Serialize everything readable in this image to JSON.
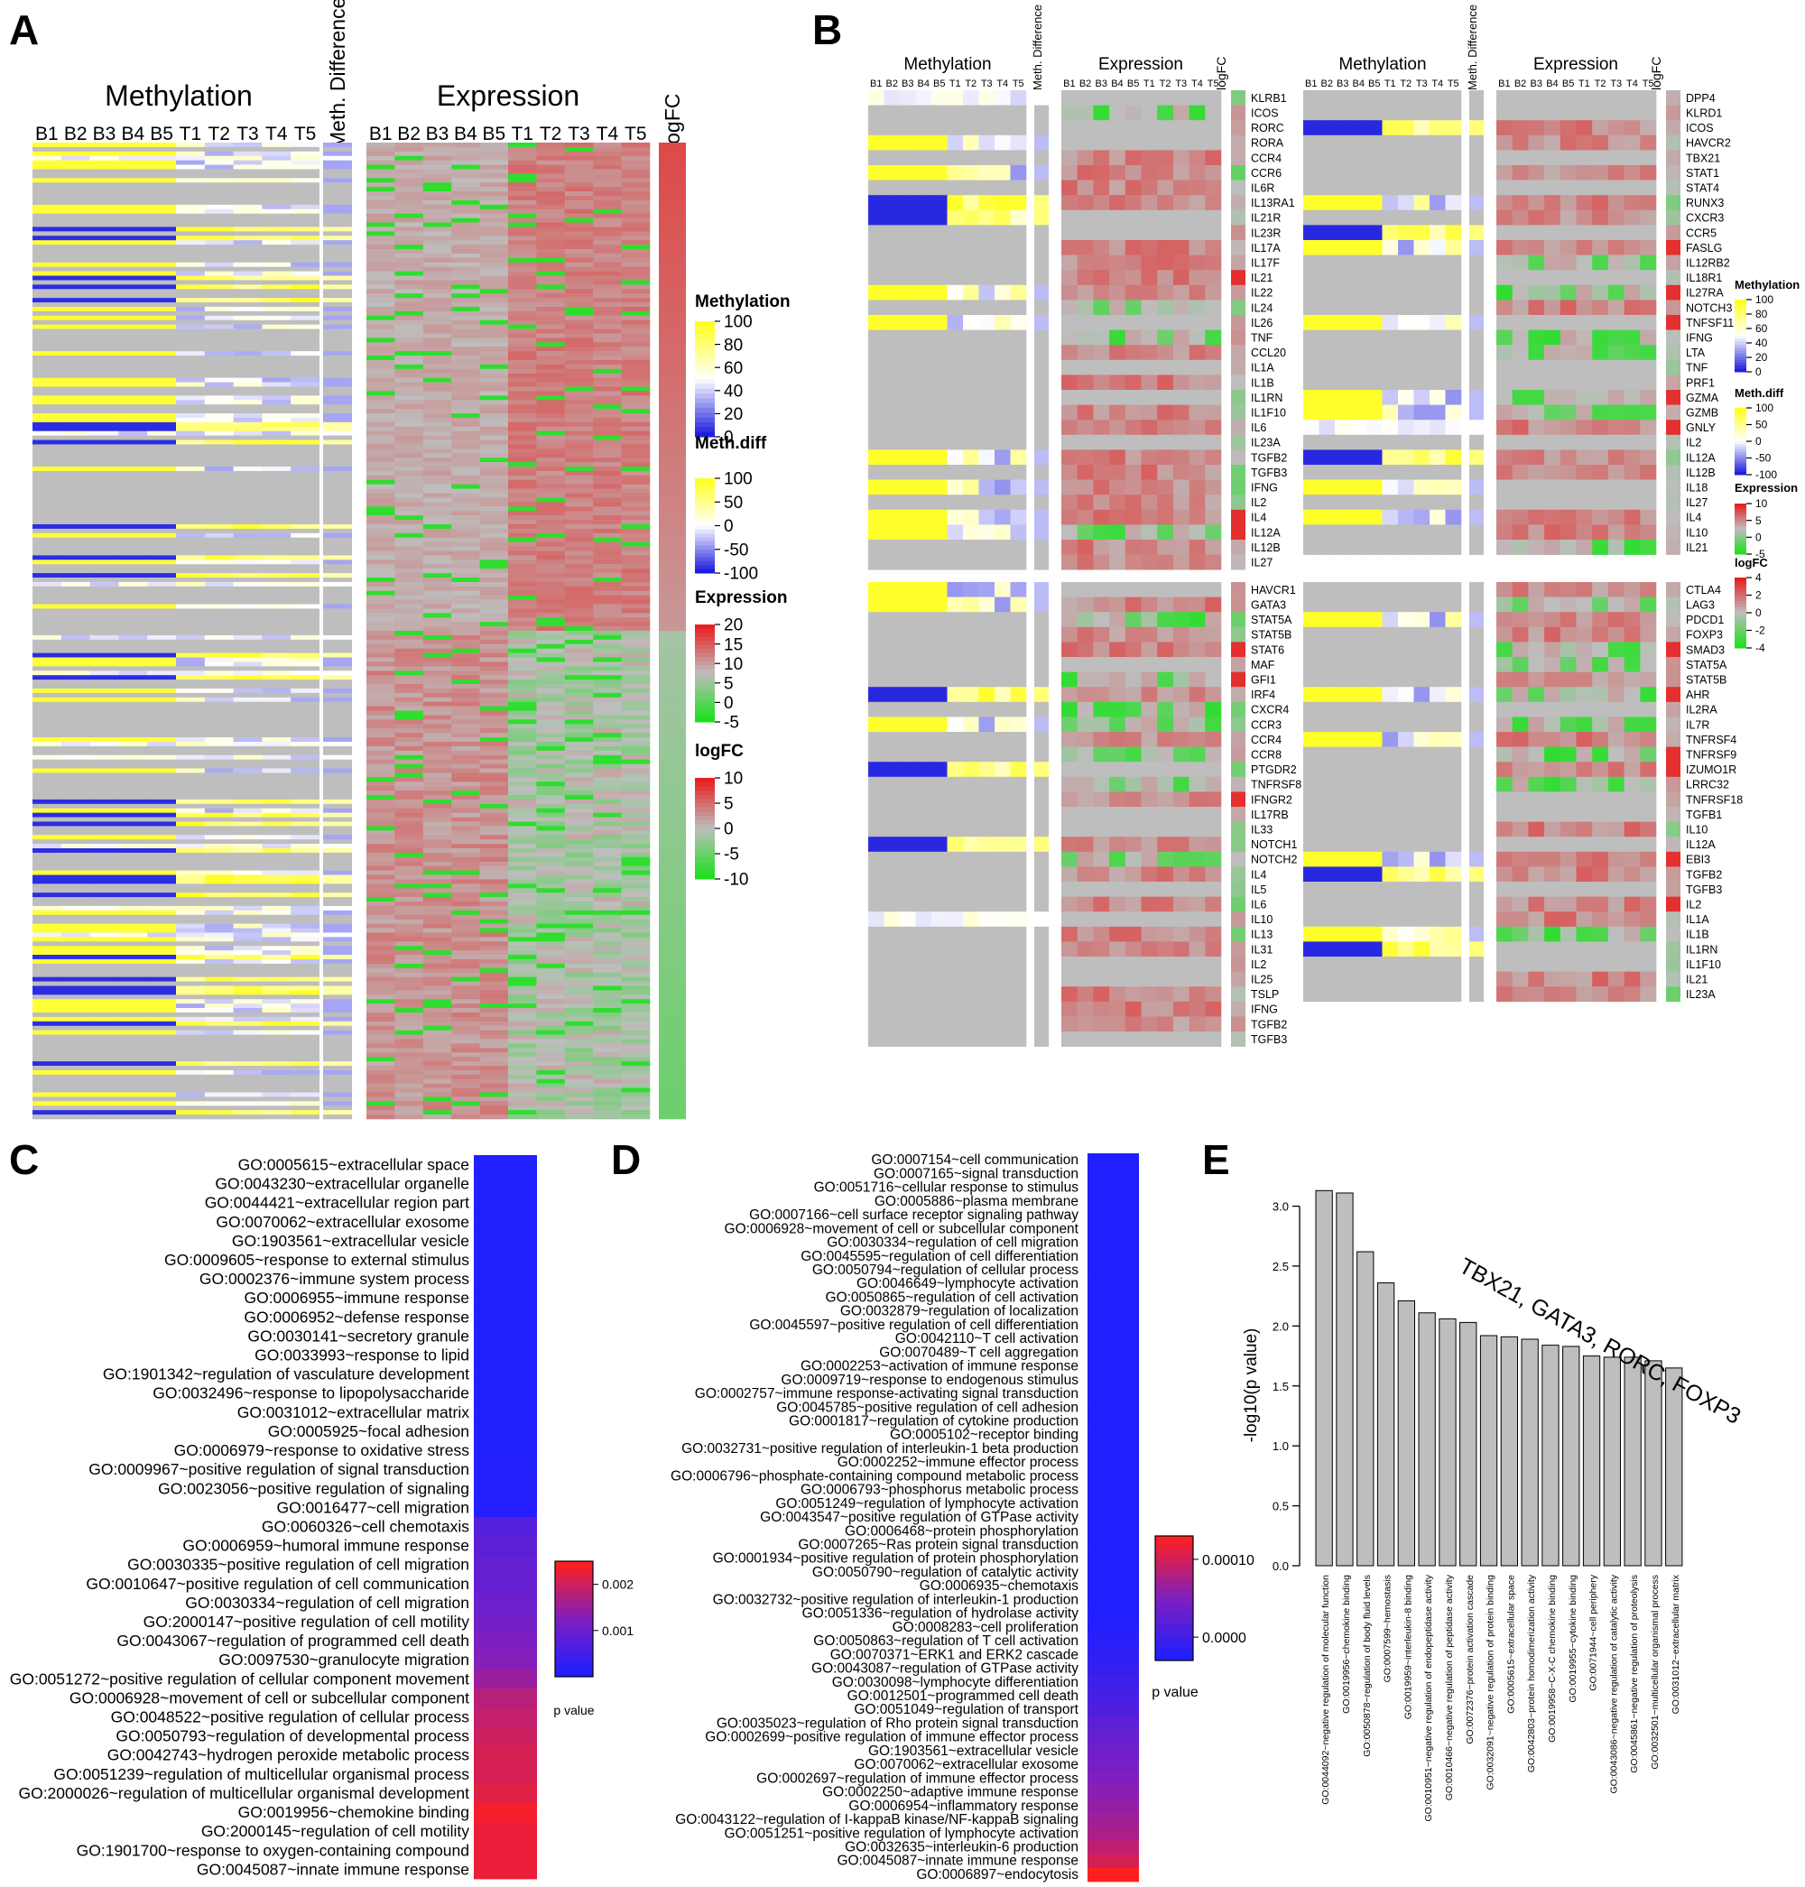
{
  "panels": {
    "A": "A",
    "B": "B",
    "C": "C",
    "D": "D",
    "E": "E"
  },
  "colors": {
    "grey": "#BEBEBE",
    "meth_low": "#1F1FE0",
    "meth_mid": "#FFFFFF",
    "meth_high": "#FFFF1F",
    "expr_low": "#1FE01F",
    "expr_high": "#E81F1F",
    "go_low": "#1F1FFF",
    "go_high": "#FF1F1F",
    "bar": "#BEBEBE"
  },
  "chart_data": [
    {
      "id": "A",
      "type": "heatmap",
      "title_methylation": "Methylation",
      "title_expression": "Expression",
      "title_methdiff": "Meth. Difference",
      "title_logfc": "logFC",
      "methylation_columns": [
        "B1",
        "B2",
        "B3",
        "B4",
        "B5",
        "T1",
        "T2",
        "T3",
        "T4",
        "T5"
      ],
      "expression_columns": [
        "B1",
        "B2",
        "B3",
        "B4",
        "B5",
        "T1",
        "T2",
        "T3",
        "T4",
        "T5"
      ],
      "n_genes": 220,
      "legends": [
        {
          "title": "Methylation",
          "ticks": [
            "100",
            "80",
            "60",
            "40",
            "20",
            "0"
          ],
          "palette": "meth"
        },
        {
          "title": "Meth.diff",
          "ticks": [
            "100",
            "50",
            "0",
            "-50",
            "-100"
          ],
          "palette": "meth"
        },
        {
          "title": "Expression",
          "ticks": [
            "20",
            "15",
            "10",
            "5",
            "0",
            "-5"
          ],
          "palette": "expr"
        },
        {
          "title": "logFC",
          "ticks": [
            "10",
            "5",
            "0",
            "-5",
            "-10"
          ],
          "palette": "expr"
        }
      ]
    },
    {
      "id": "B",
      "type": "heatmap",
      "title_methylation": "Methylation",
      "title_expression": "Expression",
      "title_methdiff": "Meth. Difference",
      "title_logfc": "logFC",
      "columns": [
        "B1",
        "B2",
        "B3",
        "B4",
        "B5",
        "T1",
        "T2",
        "T3",
        "T4",
        "T5"
      ],
      "blocks": [
        {
          "genes": [
            "KLRB1",
            "ICOS",
            "RORC",
            "RORA",
            "CCR4",
            "CCR6",
            "IL6R",
            "IL13RA1",
            "IL21R",
            "IL23R",
            "IL17A",
            "IL17F",
            "IL21",
            "IL22",
            "IL24",
            "IL26",
            "TNF",
            "CCL20",
            "IL1A",
            "IL1B",
            "IL1RN",
            "IL1F10",
            "IL6",
            "IL23A",
            "TGFB2",
            "TGFB3",
            "IFNG",
            "IL2",
            "IL4",
            "IL12A",
            "IL12B",
            "IL27"
          ]
        },
        {
          "genes": [
            "HAVCR1",
            "GATA3",
            "STAT5A",
            "STAT5B",
            "STAT6",
            "MAF",
            "GFI1",
            "IRF4",
            "CXCR4",
            "CCR3",
            "CCR4",
            "CCR8",
            "PTGDR2",
            "TNFRSF8",
            "IFNGR2",
            "IL17RB",
            "IL33",
            "NOTCH1",
            "NOTCH2",
            "IL4",
            "IL5",
            "IL6",
            "IL10",
            "IL13",
            "IL31",
            "IL2",
            "IL25",
            "TSLP",
            "IFNG",
            "TGFB2",
            "TGFB3"
          ]
        },
        {
          "genes": [
            "DPP4",
            "KLRD1",
            "ICOS",
            "HAVCR2",
            "TBX21",
            "STAT1",
            "STAT4",
            "RUNX3",
            "CXCR3",
            "CCR5",
            "FASLG",
            "IL12RB2",
            "IL18R1",
            "IL27RA",
            "NOTCH3",
            "TNFSF11",
            "IFNG",
            "LTA",
            "TNF",
            "PRF1",
            "GZMA",
            "GZMB",
            "GNLY",
            "IL2",
            "IL12A",
            "IL12B",
            "IL18",
            "IL27",
            "IL4",
            "IL10",
            "IL21"
          ]
        },
        {
          "genes": [
            "CTLA4",
            "LAG3",
            "PDCD1",
            "FOXP3",
            "SMAD3",
            "STAT5A",
            "STAT5B",
            "AHR",
            "IL2RA",
            "IL7R",
            "TNFRSF4",
            "TNFRSF9",
            "IZUMO1R",
            "LRRC32",
            "TNFRSF18",
            "TGFB1",
            "IL10",
            "IL12A",
            "EBI3",
            "TGFB2",
            "TGFB3",
            "IL2",
            "IL1A",
            "IL1B",
            "IL1RN",
            "IL1F10",
            "IL21",
            "IL23A"
          ]
        }
      ],
      "legends": [
        {
          "title": "Methylation",
          "ticks": [
            "100",
            "80",
            "60",
            "40",
            "20",
            "0"
          ],
          "palette": "meth"
        },
        {
          "title": "Meth.diff",
          "ticks": [
            "100",
            "50",
            "0",
            "-50",
            "-100"
          ],
          "palette": "meth"
        },
        {
          "title": "Expression",
          "ticks": [
            "10",
            "5",
            "0",
            "-5"
          ],
          "palette": "expr"
        },
        {
          "title": "logFC",
          "ticks": [
            "4",
            "2",
            "0",
            "-2",
            "-4"
          ],
          "palette": "expr"
        }
      ]
    },
    {
      "id": "C",
      "type": "heatmap",
      "legend_title": "p value",
      "legend_ticks": [
        "0.002",
        "0.001"
      ],
      "legend_tick_values": [
        0.002,
        0.001
      ],
      "legend_range": [
        0,
        0.0025
      ],
      "terms": [
        "GO:0005615~extracellular space",
        "GO:0043230~extracellular organelle",
        "GO:0044421~extracellular region part",
        "GO:0070062~extracellular exosome",
        "GO:1903561~extracellular vesicle",
        "GO:0009605~response to external stimulus",
        "GO:0002376~immune system process",
        "GO:0006955~immune response",
        "GO:0006952~defense response",
        "GO:0030141~secretory granule",
        "GO:0033993~response to lipid",
        "GO:1901342~regulation of vasculature development",
        "GO:0032496~response to lipopolysaccharide",
        "GO:0031012~extracellular matrix",
        "GO:0005925~focal adhesion",
        "GO:0006979~response to oxidative stress",
        "GO:0009967~positive regulation of signal transduction",
        "GO:0023056~positive regulation of signaling",
        "GO:0016477~cell migration",
        "GO:0060326~cell chemotaxis",
        "GO:0006959~humoral immune response",
        "GO:0030335~positive regulation of cell migration",
        "GO:0010647~positive regulation of cell communication",
        "GO:0030334~regulation of cell migration",
        "GO:2000147~positive regulation of cell motility",
        "GO:0043067~regulation of programmed cell death",
        "GO:0097530~granulocyte migration",
        "GO:0051272~positive regulation of cellular component movement",
        "GO:0006928~movement of cell or subcellular component",
        "GO:0048522~positive regulation of cellular process",
        "GO:0050793~regulation of developmental process",
        "GO:0042743~hydrogen peroxide metabolic process",
        "GO:0051239~regulation of multicellular organismal process",
        "GO:2000026~regulation of multicellular organismal development",
        "GO:0019956~chemokine binding",
        "GO:2000145~regulation of cell motility",
        "GO:1901700~response to oxygen-containing compound",
        "GO:0045087~innate immune response"
      ],
      "p_values": [
        1e-05,
        1e-05,
        1e-05,
        1e-05,
        1e-05,
        1e-05,
        1e-05,
        2e-05,
        2e-05,
        2e-05,
        2e-05,
        3e-05,
        3e-05,
        3e-05,
        4e-05,
        4e-05,
        5e-05,
        5e-05,
        6e-05,
        0.0007,
        0.0008,
        0.0009,
        0.0009,
        0.001,
        0.0011,
        0.0012,
        0.0013,
        0.0015,
        0.0018,
        0.0019,
        0.002,
        0.0021,
        0.0021,
        0.0022,
        0.0024,
        0.0023,
        0.0023,
        0.0023
      ]
    },
    {
      "id": "D",
      "type": "heatmap",
      "legend_title": "p value",
      "legend_ticks": [
        "0.00010",
        "0.0000"
      ],
      "legend_tick_values": [
        0.0001,
        0
      ],
      "legend_range": [
        -3e-05,
        0.00013
      ],
      "terms": [
        "GO:0007154~cell communication",
        "GO:0007165~signal transduction",
        "GO:0051716~cellular response to stimulus",
        "GO:0005886~plasma membrane",
        "GO:0007166~cell surface receptor signaling pathway",
        "GO:0006928~movement of cell or subcellular component",
        "GO:0030334~regulation of cell migration",
        "GO:0045595~regulation of cell differentiation",
        "GO:0050794~regulation of cellular process",
        "GO:0046649~lymphocyte activation",
        "GO:0050865~regulation of cell activation",
        "GO:0032879~regulation of localization",
        "GO:0045597~positive regulation of cell differentiation",
        "GO:0042110~T cell activation",
        "GO:0070489~T cell aggregation",
        "GO:0002253~activation of immune response",
        "GO:0009719~response to endogenous stimulus",
        "GO:0002757~immune response-activating signal transduction",
        "GO:0045785~positive regulation of cell adhesion",
        "GO:0001817~regulation of cytokine production",
        "GO:0005102~receptor binding",
        "GO:0032731~positive regulation of interleukin-1 beta production",
        "GO:0002252~immune effector process",
        "GO:0006796~phosphate-containing compound metabolic process",
        "GO:0006793~phosphorus metabolic process",
        "GO:0051249~regulation of lymphocyte activation",
        "GO:0043547~positive regulation of GTPase activity",
        "GO:0006468~protein phosphorylation",
        "GO:0007265~Ras protein signal transduction",
        "GO:0001934~positive regulation of protein phosphorylation",
        "GO:0050790~regulation of catalytic activity",
        "GO:0006935~chemotaxis",
        "GO:0032732~positive regulation of interleukin-1 production",
        "GO:0051336~regulation of hydrolase activity",
        "GO:0008283~cell proliferation",
        "GO:0050863~regulation of T cell activation",
        "GO:0070371~ERK1 and ERK2 cascade",
        "GO:0043087~regulation of GTPase activity",
        "GO:0030098~lymphocyte differentiation",
        "GO:0012501~programmed cell death",
        "GO:0051049~regulation of transport",
        "GO:0035023~regulation of Rho protein signal transduction",
        "GO:0002699~positive regulation of immune effector process",
        "GO:1903561~extracellular vesicle",
        "GO:0070062~extracellular exosome",
        "GO:0002697~regulation of immune effector process",
        "GO:0002250~adaptive immune response",
        "GO:0006954~inflammatory response",
        "GO:0043122~regulation of I-kappaB kinase/NF-kappaB signaling",
        "GO:0051251~positive regulation of lymphocyte activation",
        "GO:0032635~interleukin-6 production",
        "GO:0045087~innate immune response",
        "GO:0006897~endocytosis"
      ],
      "p_values": [
        1e-07,
        1e-07,
        1e-07,
        1e-07,
        1e-07,
        1e-07,
        1e-07,
        1e-07,
        1e-07,
        1e-07,
        1e-07,
        1e-07,
        1e-07,
        1e-07,
        1e-07,
        1e-07,
        1e-07,
        1e-07,
        1e-07,
        1e-07,
        1e-07,
        1e-07,
        1e-07,
        1e-07,
        1e-07,
        1e-07,
        1e-07,
        1e-07,
        1e-07,
        1e-07,
        1e-07,
        1e-07,
        1e-07,
        1e-06,
        3e-06,
        6e-06,
        1e-05,
        1.5e-05,
        2e-05,
        2.5e-05,
        3e-05,
        4e-05,
        4.5e-05,
        5e-05,
        5.5e-05,
        6e-05,
        6.5e-05,
        7e-05,
        7.5e-05,
        8e-05,
        9e-05,
        0.0001,
        0.00012
      ]
    },
    {
      "id": "E",
      "type": "bar",
      "annotation": "TBX21, GATA3, RORC, FOXP3",
      "ylabel": "-log10(p value)",
      "ylim": [
        0,
        3.2
      ],
      "yticks": [
        0.0,
        0.5,
        1.0,
        1.5,
        2.0,
        2.5,
        3.0
      ],
      "ytick_labels": [
        "0.0",
        "0.5",
        "1.0",
        "1.5",
        "2.0",
        "2.5",
        "3.0"
      ],
      "categories": [
        "GO:0044092~negative regulation of molecular function",
        "GO:0019956~chemokine binding",
        "GO:0050878~regulation of body fluid levels",
        "GO:0007599~hemostasis",
        "GO:0019959~interleukin-8 binding",
        "GO:0010951~negative regulation of endopeptidase activity",
        "GO:0010466~negative regulation of peptidase activity",
        "GO:0072376~protein activation cascade",
        "GO:0032091~negative regulation of protein binding",
        "GO:0005615~extracellular space",
        "GO:0042803~protein homodimerization activity",
        "GO:0019958~C-X-C chemokine binding",
        "GO:0019955~cytokine binding",
        "GO:0071944~cell periphery",
        "GO:0043086~negative regulation of catalytic activity",
        "GO:0045861~negative regulation of proteolysis",
        "GO:0032501~multicellular organismal process",
        "GO:0031012~extracellular matrix"
      ],
      "values": [
        3.13,
        3.11,
        2.62,
        2.36,
        2.21,
        2.11,
        2.06,
        2.03,
        1.92,
        1.91,
        1.89,
        1.84,
        1.83,
        1.75,
        1.74,
        1.74,
        1.71,
        1.65
      ]
    }
  ]
}
